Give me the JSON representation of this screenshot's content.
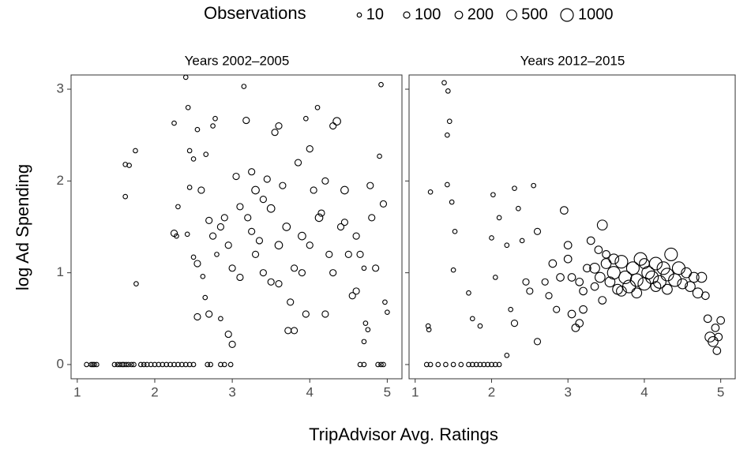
{
  "legend": {
    "title": "Observations",
    "sizes": [
      10,
      100,
      200,
      500,
      1000
    ]
  },
  "x_label": "TripAdvisor Avg. Ratings",
  "y_label": "log Ad Spending",
  "chart_data": [
    {
      "type": "scatter",
      "title": "Years 2002–2005",
      "color": "#000000",
      "xlim": [
        0.92,
        5.2
      ],
      "xticks": [
        1,
        2,
        3,
        4,
        5
      ],
      "ylim": [
        -0.155,
        3.155
      ],
      "yticks": [
        0,
        1,
        2,
        3
      ],
      "x": [
        1.12,
        1.18,
        1.2,
        1.22,
        1.25,
        1.48,
        1.52,
        1.55,
        1.58,
        1.6,
        1.63,
        1.66,
        1.7,
        1.73,
        1.82,
        1.86,
        1.9,
        1.95,
        2.0,
        2.05,
        2.1,
        2.15,
        2.2,
        2.25,
        2.3,
        2.35,
        2.4,
        2.45,
        2.5,
        2.68,
        2.72,
        2.85,
        2.9,
        2.98,
        4.65,
        4.7,
        4.88,
        4.92,
        4.95,
        1.62,
        1.67,
        1.75,
        1.62,
        1.76,
        2.25,
        2.4,
        2.43,
        2.45,
        2.3,
        2.45,
        2.55,
        2.5,
        2.6,
        2.66,
        2.75,
        2.78,
        2.25,
        2.28,
        2.42,
        2.5,
        2.55,
        2.62,
        2.65,
        2.7,
        2.75,
        2.8,
        2.85,
        2.9,
        2.95,
        3.0,
        3.05,
        3.1,
        3.15,
        3.18,
        3.2,
        3.25,
        3.3,
        3.35,
        3.4,
        3.45,
        3.5,
        3.55,
        3.6,
        3.65,
        3.7,
        3.72,
        3.8,
        3.8,
        3.85,
        3.9,
        3.95,
        4.0,
        4.05,
        4.1,
        4.12,
        4.2,
        4.25,
        4.3,
        4.35,
        4.4,
        4.45,
        4.5,
        4.55,
        4.6,
        4.65,
        4.7,
        4.75,
        4.78,
        4.8,
        4.85,
        4.9,
        4.92,
        4.95,
        4.97,
        5.0,
        2.55,
        2.7,
        2.85,
        2.95,
        3.0,
        3.5,
        3.6,
        3.75,
        3.95,
        4.2,
        4.6,
        4.7,
        4.72,
        3.3,
        3.1,
        3.25,
        3.4,
        3.6,
        3.9,
        4.0,
        4.15,
        4.3,
        4.45
      ],
      "values": [
        0,
        0,
        0,
        0,
        0,
        0,
        0,
        0,
        0,
        0,
        0,
        0,
        0,
        0,
        0,
        0,
        0,
        0,
        0,
        0,
        0,
        0,
        0,
        0,
        0,
        0,
        0,
        0,
        0,
        0,
        0,
        0,
        0,
        0,
        0,
        0,
        0,
        0,
        0,
        2.18,
        2.17,
        2.33,
        1.83,
        0.88,
        2.63,
        3.13,
        2.8,
        2.33,
        1.72,
        1.93,
        2.56,
        2.24,
        1.9,
        2.29,
        2.6,
        2.68,
        1.43,
        1.4,
        1.42,
        1.17,
        1.1,
        0.96,
        0.73,
        1.57,
        1.4,
        1.2,
        1.5,
        1.6,
        1.3,
        1.05,
        2.05,
        1.72,
        3.03,
        2.66,
        1.6,
        2.1,
        1.9,
        1.35,
        1.8,
        2.02,
        1.7,
        2.53,
        2.6,
        1.95,
        1.5,
        0.37,
        0.37,
        1.05,
        2.2,
        1.4,
        2.68,
        2.35,
        1.9,
        2.8,
        1.6,
        2.0,
        1.2,
        2.6,
        2.65,
        1.5,
        1.9,
        1.2,
        0.75,
        1.4,
        1.2,
        1.05,
        0.38,
        1.95,
        1.6,
        1.05,
        2.27,
        3.05,
        1.75,
        0.68,
        0.57,
        0.52,
        0.55,
        0.5,
        0.33,
        0.22,
        0.9,
        0.88,
        0.68,
        0.55,
        0.55,
        0.8,
        0.25,
        0.45,
        1.2,
        0.95,
        1.45,
        1.0,
        1.3,
        1.0,
        1.3,
        1.65,
        1.0,
        1.55
      ],
      "sizes": [
        10,
        10,
        10,
        10,
        10,
        10,
        10,
        10,
        10,
        10,
        10,
        10,
        10,
        10,
        10,
        10,
        10,
        10,
        10,
        10,
        10,
        10,
        10,
        10,
        10,
        10,
        10,
        10,
        10,
        10,
        10,
        10,
        10,
        10,
        10,
        10,
        10,
        10,
        10,
        10,
        10,
        10,
        10,
        10,
        10,
        10,
        10,
        10,
        10,
        10,
        10,
        10,
        100,
        10,
        10,
        10,
        100,
        10,
        10,
        10,
        100,
        10,
        10,
        100,
        100,
        10,
        100,
        100,
        100,
        100,
        100,
        100,
        10,
        100,
        100,
        100,
        200,
        100,
        100,
        100,
        200,
        100,
        100,
        100,
        200,
        100,
        100,
        100,
        100,
        200,
        10,
        100,
        100,
        10,
        200,
        100,
        100,
        100,
        200,
        100,
        200,
        100,
        100,
        100,
        100,
        10,
        10,
        100,
        100,
        100,
        10,
        10,
        100,
        10,
        10,
        100,
        100,
        10,
        100,
        100,
        100,
        100,
        100,
        100,
        100,
        100,
        10,
        10,
        100,
        100,
        100,
        100,
        200,
        100,
        100,
        100,
        100,
        100
      ]
    },
    {
      "type": "scatter",
      "title": "Years 2012–2015",
      "color": "#000000",
      "xlim": [
        0.92,
        5.2
      ],
      "xticks": [
        1,
        2,
        3,
        4,
        5
      ],
      "ylim": [
        -0.155,
        3.155
      ],
      "yticks": [
        0,
        1,
        2,
        3
      ],
      "x": [
        1.15,
        1.2,
        1.3,
        1.4,
        1.5,
        1.6,
        1.7,
        1.75,
        1.8,
        1.85,
        1.9,
        1.95,
        2.0,
        2.05,
        2.1,
        1.2,
        1.17,
        1.18,
        1.38,
        1.43,
        1.42,
        1.45,
        1.42,
        1.48,
        1.52,
        1.5,
        1.7,
        1.75,
        1.85,
        2.02,
        2.0,
        2.05,
        2.1,
        2.2,
        2.25,
        2.3,
        2.35,
        2.4,
        2.45,
        2.55,
        2.6,
        2.6,
        2.2,
        2.3,
        2.5,
        2.7,
        2.8,
        2.85,
        2.95,
        3.0,
        3.05,
        3.1,
        3.15,
        3.2,
        3.25,
        3.3,
        3.4,
        3.45,
        3.5,
        3.35,
        3.42,
        3.5,
        3.55,
        3.6,
        3.65,
        3.7,
        3.75,
        3.8,
        3.85,
        3.9,
        3.95,
        4.0,
        4.05,
        4.1,
        4.15,
        4.2,
        4.25,
        4.3,
        4.35,
        4.4,
        4.45,
        4.5,
        4.55,
        4.6,
        4.65,
        4.7,
        4.75,
        4.8,
        4.83,
        4.86,
        4.9,
        4.93,
        4.95,
        4.97,
        5.0,
        3.7,
        3.9,
        4.15,
        4.3,
        4.0,
        3.6,
        3.45,
        3.35,
        3.2,
        3.15,
        3.05,
        3.0,
        2.9,
        2.75
      ],
      "values": [
        0,
        0,
        0,
        0,
        0,
        0,
        0,
        0,
        0,
        0,
        0,
        0,
        0,
        0,
        0,
        1.88,
        0.42,
        0.38,
        3.07,
        2.98,
        2.5,
        2.65,
        1.96,
        1.77,
        1.45,
        1.03,
        0.78,
        0.5,
        0.42,
        1.85,
        1.38,
        0.95,
        1.6,
        1.3,
        0.6,
        1.92,
        1.7,
        1.35,
        0.9,
        1.95,
        1.45,
        0.25,
        0.1,
        0.45,
        0.8,
        0.9,
        1.1,
        0.6,
        1.68,
        1.3,
        0.55,
        0.4,
        0.9,
        0.8,
        1.05,
        1.35,
        1.25,
        1.52,
        1.2,
        1.05,
        0.95,
        1.1,
        0.9,
        1.0,
        0.82,
        1.12,
        0.95,
        0.85,
        1.05,
        0.92,
        1.15,
        0.88,
        1.0,
        0.95,
        1.1,
        0.9,
        1.05,
        0.98,
        1.2,
        0.92,
        1.05,
        0.88,
        1.0,
        0.85,
        0.95,
        0.78,
        0.95,
        0.75,
        0.5,
        0.3,
        0.25,
        0.4,
        0.15,
        0.3,
        0.48,
        0.8,
        0.78,
        0.85,
        0.82,
        1.1,
        1.15,
        0.7,
        0.85,
        0.6,
        0.45,
        0.95,
        1.15,
        0.95,
        0.75
      ],
      "sizes": [
        10,
        10,
        10,
        10,
        10,
        10,
        10,
        10,
        10,
        10,
        10,
        10,
        10,
        10,
        10,
        10,
        10,
        10,
        10,
        10,
        10,
        10,
        10,
        10,
        10,
        10,
        10,
        10,
        10,
        10,
        10,
        10,
        10,
        10,
        10,
        10,
        10,
        10,
        100,
        10,
        100,
        100,
        10,
        100,
        100,
        100,
        200,
        100,
        200,
        200,
        200,
        200,
        200,
        200,
        200,
        200,
        200,
        500,
        200,
        500,
        500,
        500,
        500,
        1000,
        500,
        1000,
        1000,
        1000,
        1000,
        1000,
        1000,
        1000,
        1000,
        1000,
        1000,
        1000,
        1000,
        1000,
        1000,
        1000,
        1000,
        500,
        500,
        500,
        500,
        500,
        500,
        200,
        200,
        500,
        500,
        200,
        200,
        200,
        200,
        500,
        500,
        500,
        500,
        500,
        500,
        200,
        200,
        200,
        200,
        200,
        200,
        200,
        100
      ]
    }
  ]
}
